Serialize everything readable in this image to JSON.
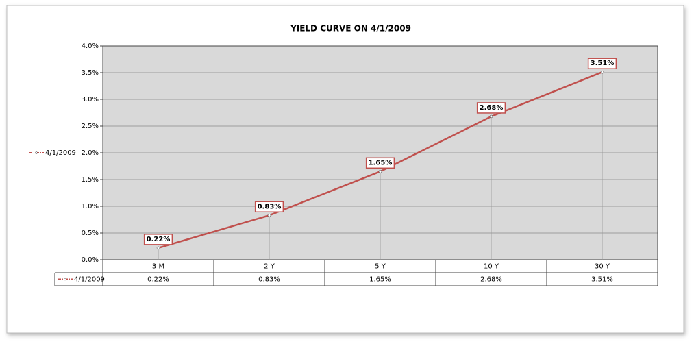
{
  "chart_data": {
    "type": "line",
    "title": "YIELD CURVE ON 4/1/2009",
    "categories": [
      "3 M",
      "2 Y",
      "5 Y",
      "10 Y",
      "30 Y"
    ],
    "series": [
      {
        "name": "4/1/2009",
        "color": "#c0504d",
        "values": [
          0.22,
          0.83,
          1.65,
          2.68,
          3.51
        ],
        "value_labels": [
          "0.22%",
          "0.83%",
          "1.65%",
          "2.68%",
          "3.51%"
        ]
      }
    ],
    "ylim": [
      0,
      4
    ],
    "yticks": [
      {
        "value": 0,
        "label": "0.0%"
      },
      {
        "value": 0.5,
        "label": "0.5%"
      },
      {
        "value": 1,
        "label": "1.0%"
      },
      {
        "value": 1.5,
        "label": "1.5%"
      },
      {
        "value": 2,
        "label": "2.0%"
      },
      {
        "value": 2.5,
        "label": "2.5%"
      },
      {
        "value": 3,
        "label": "3.0%"
      },
      {
        "value": 3.5,
        "label": "3.5%"
      },
      {
        "value": 4,
        "label": "4.0%"
      }
    ],
    "grid": true,
    "legend": "left",
    "data_table": true
  }
}
